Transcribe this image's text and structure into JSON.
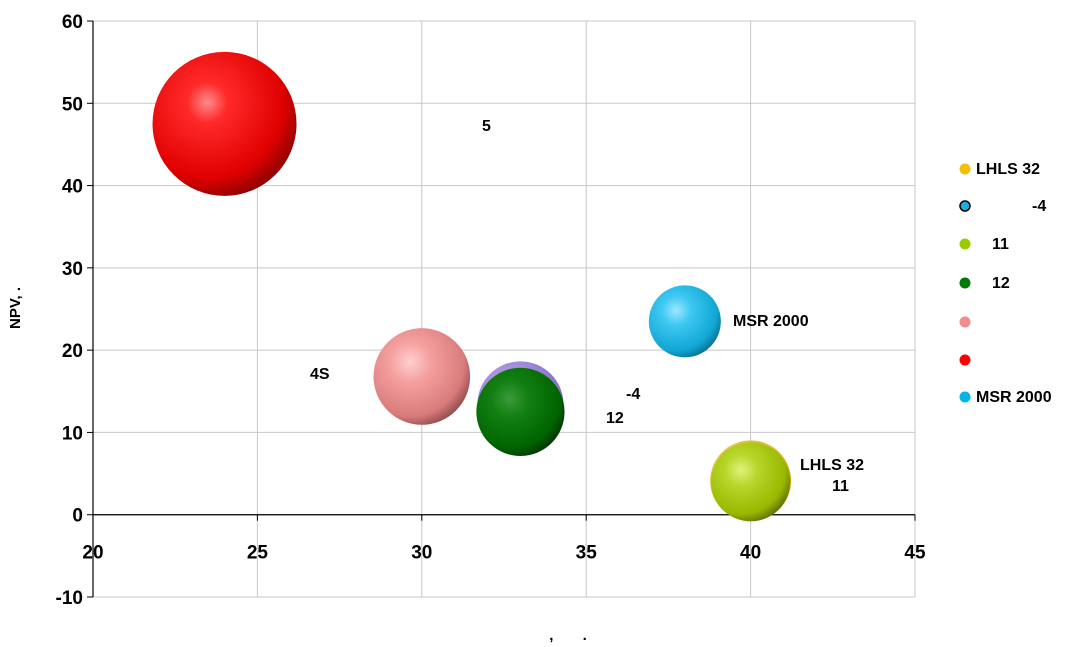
{
  "chart_data": {
    "type": "scatter",
    "xlabel": ",       .",
    "ylabel": "NPV,       .",
    "xlim": [
      20,
      45
    ],
    "ylim": [
      -10,
      60
    ],
    "x_ticks": [
      "20",
      "25",
      "30",
      "35",
      "40",
      "45"
    ],
    "y_ticks": [
      "-10",
      "0",
      "10",
      "20",
      "30",
      "40",
      "50",
      "60"
    ],
    "grid": true,
    "legend_position": "right",
    "series": [
      {
        "name": "LHLS 32",
        "color": "#f2c200",
        "x": 40,
        "y": 4,
        "size": 0
      },
      {
        "name": "-4",
        "color": "#1ab0e0",
        "x": 33,
        "y": 13,
        "size": 0
      },
      {
        "name": "11",
        "color": "#99cc00",
        "x": 40,
        "y": 4,
        "size": 12
      },
      {
        "name": "12",
        "color": "#007a00",
        "x": 33,
        "y": 12.5,
        "size": 15
      },
      {
        "name": "",
        "color": "#f28c8c",
        "x": 30,
        "y": 16.8,
        "size": 18
      },
      {
        "name": "",
        "color": "#ff0000",
        "x": 24,
        "y": 47.5,
        "size": 40
      },
      {
        "name": "MSR 2000",
        "color": "#00b4e6",
        "x": 38,
        "y": 23.5,
        "size": 10
      }
    ],
    "annotations": [
      {
        "text": "5",
        "x": 32,
        "y": 47
      },
      {
        "text": "4S",
        "x": 27,
        "y": 17
      },
      {
        "text": "MSR 2000",
        "x": 40.6,
        "y": 23
      },
      {
        "text": "-4",
        "x": 36.5,
        "y": 14.5
      },
      {
        "text": "12",
        "x": 36,
        "y": 11.5
      },
      {
        "text": "LHLS 32",
        "x": 42.7,
        "y": 5.8
      },
      {
        "text": "11",
        "x": 42.7,
        "y": 3.4
      }
    ]
  }
}
